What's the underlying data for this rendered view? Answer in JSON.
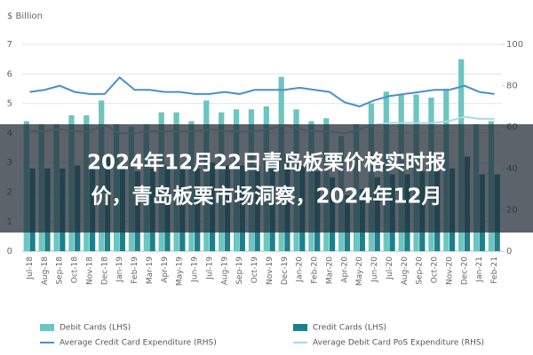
{
  "chart_data": {
    "type": "bar",
    "y_label": "$ Billion",
    "categories": [
      "Jul-18",
      "Aug-18",
      "Sep-18",
      "Oct-18",
      "Nov-18",
      "Dec-18",
      "Jan-19",
      "Feb-19",
      "Mar-19",
      "Apr-19",
      "May-19",
      "Jun-19",
      "Jul-19",
      "Aug-19",
      "Sep-19",
      "Oct-19",
      "Nov-19",
      "Dec-19",
      "Jan-20",
      "Feb-20",
      "Mar-20",
      "Apr-20",
      "May-20",
      "Jun-20",
      "Jul-20",
      "Aug-20",
      "Sep-20",
      "Oct-20",
      "Nov-20",
      "Dec-20",
      "Jan-21",
      "Feb-21"
    ],
    "series": [
      {
        "name": "Debit Cards (LHS)",
        "type": "bar",
        "color": "#6cc5c0",
        "values": [
          4.4,
          4.3,
          4.3,
          4.6,
          4.6,
          5.1,
          4.3,
          4.2,
          4.3,
          4.7,
          4.7,
          4.4,
          5.1,
          4.7,
          4.8,
          4.8,
          4.9,
          5.9,
          4.8,
          4.4,
          4.5,
          3.9,
          4.3,
          5.0,
          5.4,
          5.3,
          5.3,
          5.2,
          5.5,
          6.5,
          4.3,
          4.4
        ]
      },
      {
        "name": "Credit Cards (LHS)",
        "type": "bar",
        "color": "#1f7f8a",
        "values": [
          2.8,
          2.8,
          2.8,
          2.9,
          2.9,
          3.3,
          2.8,
          2.7,
          2.8,
          2.9,
          2.9,
          2.8,
          3.0,
          2.9,
          2.9,
          2.9,
          3.0,
          3.3,
          2.9,
          2.7,
          2.5,
          1.9,
          2.1,
          2.5,
          2.6,
          2.6,
          2.7,
          2.7,
          2.8,
          3.2,
          2.6,
          2.6
        ]
      },
      {
        "name": "Average Credit Card Expenditure (RHS)",
        "type": "line",
        "axis": "y2",
        "color": "#4a8fd0",
        "values": [
          77,
          78,
          80,
          77,
          76,
          76,
          84,
          78,
          78,
          77,
          77,
          76,
          76,
          77,
          76,
          78,
          78,
          78,
          79,
          78,
          77,
          72,
          70,
          73,
          75,
          76,
          77,
          78,
          78,
          80,
          77,
          76
        ]
      },
      {
        "name": "Average Debit Card PoS Expenditure (RHS)",
        "type": "line",
        "axis": "y2",
        "color": "#a8d8e8",
        "values": [
          58,
          58,
          59,
          58,
          58,
          61,
          57,
          57,
          58,
          58,
          58,
          58,
          59,
          58,
          58,
          58,
          59,
          61,
          59,
          58,
          58,
          57,
          59,
          61,
          62,
          62,
          62,
          62,
          63,
          65,
          64,
          64
        ]
      }
    ],
    "ylim": [
      0,
      7
    ],
    "yticks": [
      0,
      1,
      2,
      3,
      4,
      5,
      6,
      7
    ],
    "y2lim": [
      0,
      100
    ],
    "y2ticks": [
      0,
      20,
      40,
      60,
      80,
      100
    ],
    "grid": true
  },
  "banner": {
    "lines": [
      "2024年12月22日青岛板栗价格实时报",
      "价，青岛板栗市场洞察，2024年12月"
    ]
  }
}
